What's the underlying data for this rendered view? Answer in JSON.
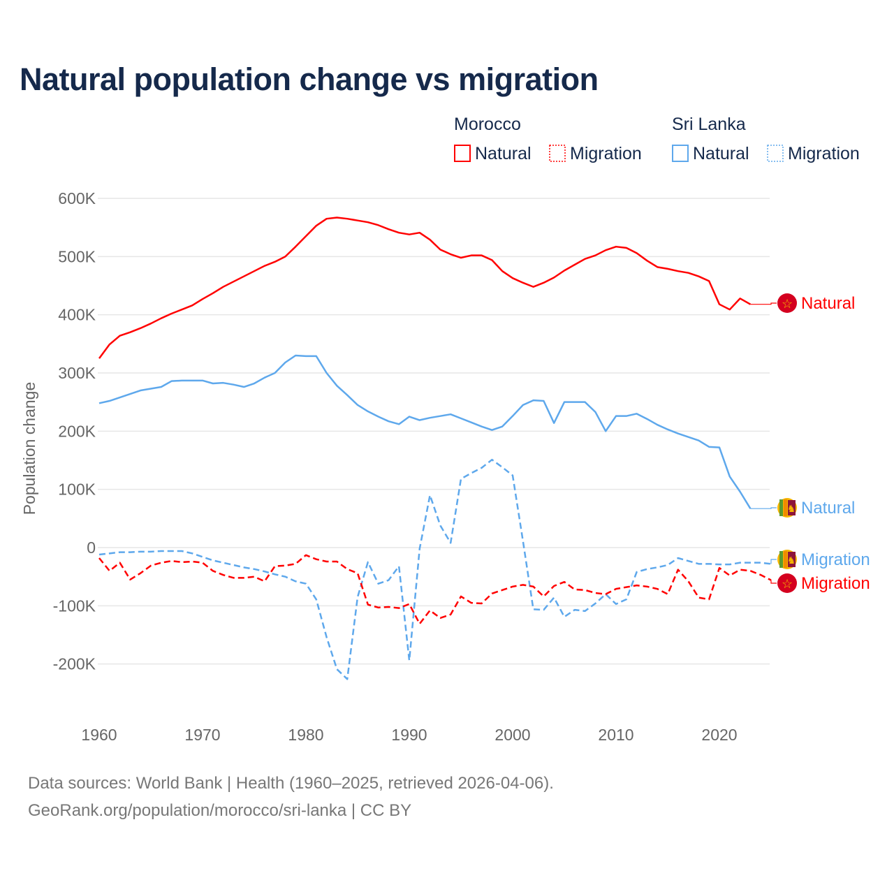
{
  "title": "Natural population change vs migration",
  "legend": {
    "groups": [
      {
        "name": "Morocco",
        "natural": "Natural",
        "migration": "Migration"
      },
      {
        "name": "Sri Lanka",
        "natural": "Natural",
        "migration": "Migration"
      }
    ]
  },
  "end_labels": {
    "morocco_natural": "Natural",
    "srilanka_natural": "Natural",
    "srilanka_migration": "Migration",
    "morocco_migration": "Migration"
  },
  "footer": {
    "line1": "Data sources: World Bank | Health (1960–2025, retrieved 2026-04-06).",
    "line2": "GeoRank.org/population/morocco/sri-lanka | CC BY"
  },
  "colors": {
    "morocco": "#ff0000",
    "srilanka": "#5ea8ec",
    "title": "#15294b",
    "grid": "#e6e6e6"
  },
  "chart_data": {
    "type": "line",
    "title": "Natural population change vs migration",
    "xlabel": "",
    "ylabel": "Population change",
    "xlim": [
      1960,
      2025
    ],
    "ylim": [
      -250000,
      600000
    ],
    "x_ticks": [
      "1960",
      "1970",
      "1980",
      "1990",
      "2000",
      "2010",
      "2020"
    ],
    "y_ticks": [
      {
        "v": 600000,
        "label": "600K"
      },
      {
        "v": 500000,
        "label": "500K"
      },
      {
        "v": 400000,
        "label": "400K"
      },
      {
        "v": 300000,
        "label": "300K"
      },
      {
        "v": 200000,
        "label": "200K"
      },
      {
        "v": 100000,
        "label": "100K"
      },
      {
        "v": 0,
        "label": "0"
      },
      {
        "v": -100000,
        "label": "-100K"
      },
      {
        "v": -200000,
        "label": "-200K"
      }
    ],
    "grid": true,
    "units": "thousands",
    "series": [
      {
        "name": "Morocco Natural",
        "country": "Morocco",
        "kind": "natural",
        "start": 1960,
        "values": [
          325,
          349,
          364,
          370,
          377,
          385,
          394,
          402,
          409,
          416,
          427,
          437,
          448,
          457,
          466,
          475,
          484,
          491,
          500,
          517,
          535,
          553,
          565,
          567,
          565,
          562,
          559,
          554,
          547,
          541,
          538,
          541,
          529,
          512,
          504,
          498,
          502,
          502,
          494,
          475,
          463,
          455,
          448,
          455,
          464,
          476,
          486,
          496,
          502,
          511,
          517,
          515,
          506,
          493,
          482,
          479,
          475,
          472,
          466,
          458,
          418,
          409,
          428,
          418
        ]
      },
      {
        "name": "Sri Lanka Natural",
        "country": "Sri Lanka",
        "kind": "natural",
        "start": 1960,
        "values": [
          248,
          252,
          258,
          264,
          270,
          273,
          276,
          286,
          287,
          287,
          287,
          282,
          283,
          280,
          276,
          282,
          292,
          300,
          318,
          330,
          329,
          329,
          300,
          278,
          262,
          245,
          234,
          225,
          217,
          212,
          225,
          219,
          223,
          226,
          229,
          222,
          215,
          208,
          202,
          208,
          226,
          245,
          253,
          252,
          214,
          250,
          250,
          250,
          233,
          200,
          226,
          226,
          230,
          221,
          211,
          203,
          196,
          190,
          184,
          173,
          172,
          122,
          96,
          67
        ]
      },
      {
        "name": "Sri Lanka Migration",
        "country": "Sri Lanka",
        "kind": "migration",
        "start": 1960,
        "values": [
          -12,
          -10,
          -8,
          -8,
          -7,
          -7,
          -6,
          -6,
          -6,
          -10,
          -16,
          -22,
          -26,
          -30,
          -34,
          -37,
          -41,
          -46,
          -50,
          -58,
          -62,
          -89,
          -154,
          -209,
          -226,
          -85,
          -25,
          -62,
          -56,
          -32,
          -194,
          -2,
          90,
          38,
          8,
          118,
          128,
          137,
          151,
          138,
          124,
          11,
          -106,
          -107,
          -86,
          -119,
          -107,
          -109,
          -96,
          -80,
          -97,
          -89,
          -42,
          -37,
          -34,
          -30,
          -18,
          -23,
          -28,
          -28,
          -29,
          -29,
          -26,
          -26,
          -26,
          -28
        ]
      },
      {
        "name": "Morocco Migration",
        "country": "Morocco",
        "kind": "migration",
        "start": 1960,
        "values": [
          -18,
          -40,
          -26,
          -55,
          -44,
          -31,
          -26,
          -23,
          -25,
          -24,
          -26,
          -40,
          -47,
          -52,
          -52,
          -50,
          -58,
          -32,
          -31,
          -28,
          -13,
          -20,
          -24,
          -24,
          -37,
          -44,
          -98,
          -103,
          -102,
          -104,
          -97,
          -131,
          -108,
          -121,
          -115,
          -84,
          -95,
          -96,
          -79,
          -73,
          -67,
          -64,
          -67,
          -84,
          -66,
          -59,
          -72,
          -73,
          -78,
          -80,
          -71,
          -68,
          -65,
          -67,
          -71,
          -80,
          -38,
          -58,
          -86,
          -89,
          -35,
          -48,
          -38,
          -40,
          -47,
          -56
        ]
      }
    ]
  }
}
